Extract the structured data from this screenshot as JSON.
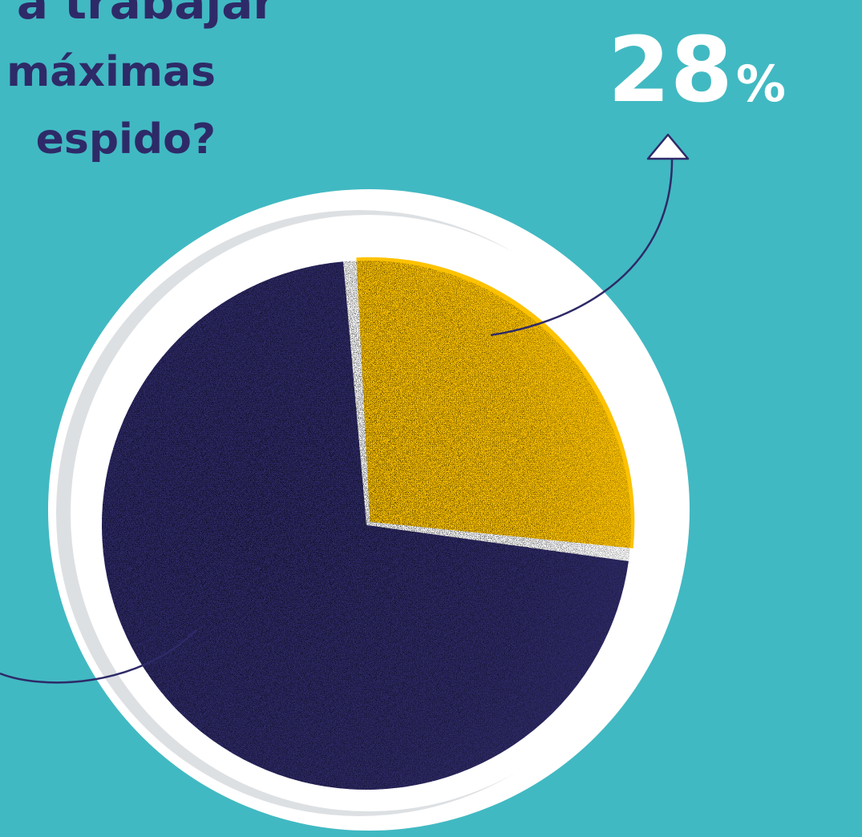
{
  "header": {
    "title_lines": [
      "a trabajar",
      "máximas",
      "espido?"
    ]
  },
  "chart_data": {
    "type": "pie",
    "slices": [
      {
        "label": "",
        "value": 28,
        "color": "#fdc200"
      },
      {
        "label": "",
        "value": 72,
        "color": "#2e2a68"
      }
    ],
    "data_labels": [
      {
        "value": "28",
        "unit": "%"
      }
    ],
    "legend": "none"
  },
  "colors": {
    "background": "#41b9c2",
    "accent": "#fdc200",
    "primary": "#2e2a68",
    "text_light": "#ffffff",
    "bezel": "#ffffff",
    "bezel_shadow": "#dde0e3"
  }
}
